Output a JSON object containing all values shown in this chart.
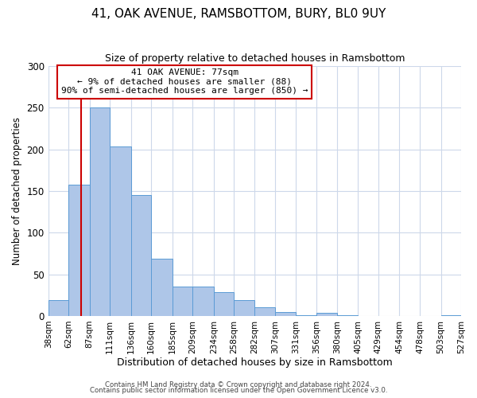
{
  "title": "41, OAK AVENUE, RAMSBOTTOM, BURY, BL0 9UY",
  "subtitle": "Size of property relative to detached houses in Ramsbottom",
  "xlabel": "Distribution of detached houses by size in Ramsbottom",
  "ylabel": "Number of detached properties",
  "bin_edges": [
    38,
    62,
    87,
    111,
    136,
    160,
    185,
    209,
    234,
    258,
    282,
    307,
    331,
    356,
    380,
    405,
    429,
    454,
    478,
    503,
    527
  ],
  "bin_heights": [
    19,
    158,
    250,
    204,
    145,
    69,
    35,
    35,
    29,
    19,
    10,
    5,
    1,
    4,
    1,
    0,
    0,
    0,
    0,
    1
  ],
  "bar_color": "#aec6e8",
  "bar_edge_color": "#5b9bd5",
  "property_line_x": 77,
  "property_line_color": "#cc0000",
  "ylim": [
    0,
    300
  ],
  "yticks": [
    0,
    50,
    100,
    150,
    200,
    250,
    300
  ],
  "annotation_title": "41 OAK AVENUE: 77sqm",
  "annotation_line1": "← 9% of detached houses are smaller (88)",
  "annotation_line2": "90% of semi-detached houses are larger (850) →",
  "annotation_box_color": "#ffffff",
  "annotation_border_color": "#cc0000",
  "footer1": "Contains HM Land Registry data © Crown copyright and database right 2024.",
  "footer2": "Contains public sector information licensed under the Open Government Licence v3.0.",
  "background_color": "#ffffff",
  "grid_color": "#cdd8ea"
}
